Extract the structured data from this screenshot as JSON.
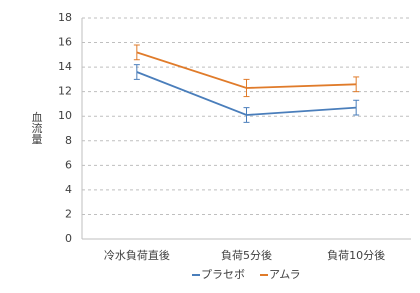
{
  "chart_data": {
    "type": "line",
    "y_label": "血流量",
    "categories": [
      "冷水負荷直後",
      "負荷5分後",
      "負荷10分後"
    ],
    "series": [
      {
        "name": "プラセボ",
        "color": "#4a7ebb",
        "values": [
          13.6,
          10.1,
          10.7
        ],
        "errors": [
          0.6,
          0.6,
          0.6
        ]
      },
      {
        "name": "アムラ",
        "color": "#e07b2a",
        "values": [
          15.2,
          12.3,
          12.6
        ],
        "errors": [
          0.6,
          0.7,
          0.6
        ]
      }
    ],
    "ylim": [
      0,
      18
    ],
    "yticks": [
      0,
      2,
      4,
      6,
      8,
      10,
      12,
      14,
      16,
      18
    ],
    "grid": true,
    "legend": "bottom"
  }
}
